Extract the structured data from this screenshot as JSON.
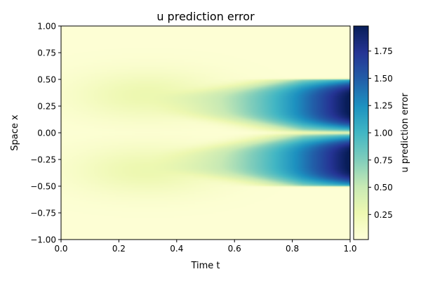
{
  "chart_data": {
    "type": "heatmap",
    "title": "u prediction error",
    "xlabel": "Time t",
    "ylabel": "Space x",
    "xlim": [
      0.0,
      1.0
    ],
    "ylim": [
      -1.0,
      1.0
    ],
    "xticks": [
      0.0,
      0.2,
      0.4,
      0.6,
      0.8,
      1.0
    ],
    "xtick_labels": [
      "0.0",
      "0.2",
      "0.4",
      "0.6",
      "0.8",
      "1.0"
    ],
    "yticks": [
      -1.0,
      -0.75,
      -0.5,
      -0.25,
      0.0,
      0.25,
      0.5,
      0.75,
      1.0
    ],
    "ytick_labels": [
      "−1.00",
      "−0.75",
      "−0.50",
      "−0.25",
      "0.00",
      "0.25",
      "0.50",
      "0.75",
      "1.00"
    ],
    "grid": false,
    "colormap": "YlGnBu",
    "colorbar": {
      "label": "u prediction error",
      "range": [
        0.02,
        1.98
      ],
      "ticks": [
        0.25,
        0.5,
        0.75,
        1.0,
        1.25,
        1.5,
        1.75
      ],
      "tick_labels": [
        "0.25",
        "0.50",
        "0.75",
        "1.00",
        "1.25",
        "1.50",
        "1.75"
      ]
    },
    "features": [
      {
        "description": "error band centered near x = 0.25 (between x ≈ 0.03 and 0.5), growing with t",
        "x_range": [
          0.03,
          0.5
        ],
        "t_start": 0.3,
        "max_value": 1.98,
        "max_at_t": 1.0
      },
      {
        "description": "error band centered near x = −0.25 (between x ≈ −0.5 and −0.03), growing with t",
        "x_range": [
          -0.5,
          -0.03
        ],
        "t_start": 0.3,
        "max_value": 1.98,
        "max_at_t": 1.0
      },
      {
        "description": "low error elsewhere",
        "value": 0.05
      }
    ]
  }
}
